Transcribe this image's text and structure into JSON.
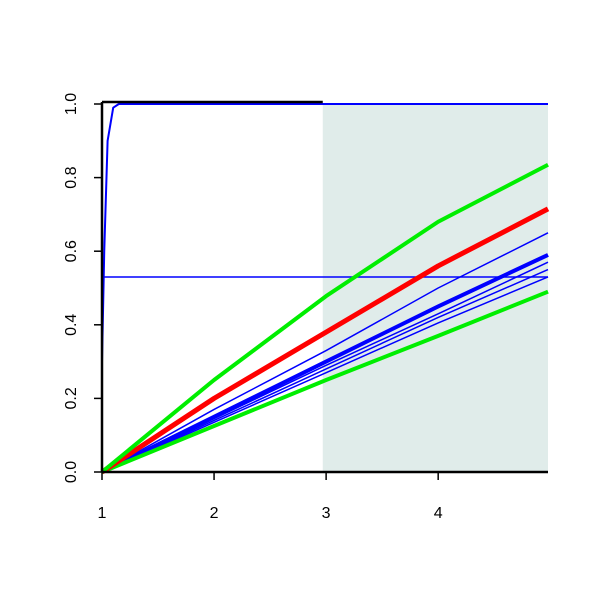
{
  "chart_data": {
    "type": "line",
    "xlim": [
      1,
      4.98
    ],
    "ylim": [
      0,
      1
    ],
    "xticks": [
      1,
      2,
      3,
      4
    ],
    "yticks": [
      {
        "value": 0,
        "label": "0.0"
      },
      0.2,
      0.4,
      0.6,
      0.8,
      {
        "value": 1,
        "label": "1.0"
      }
    ],
    "shaded_region": {
      "x": [
        2.97,
        4.98
      ],
      "color": "#e0ecea"
    },
    "series": [
      {
        "color": "#0000ff",
        "width": 1.5,
        "x": [
          1,
          4.98
        ],
        "values": [
          0.53,
          0.53
        ]
      },
      {
        "color": "#0000ff",
        "width": 1.5,
        "x": [
          1,
          2,
          3,
          4,
          4.98
        ],
        "values": [
          0,
          0.17,
          0.33,
          0.5,
          0.65
        ]
      },
      {
        "color": "#0000ff",
        "width": 1.5,
        "x": [
          1,
          2,
          3,
          4,
          4.98
        ],
        "values": [
          0,
          0.14,
          0.28,
          0.42,
          0.55
        ]
      },
      {
        "color": "#0000ff",
        "width": 1.5,
        "x": [
          1,
          2,
          3,
          4,
          4.98
        ],
        "values": [
          0,
          0.135,
          0.27,
          0.405,
          0.53
        ]
      },
      {
        "color": "#0000ff",
        "width": 1.5,
        "x": [
          1,
          2,
          3,
          4,
          4.98
        ],
        "values": [
          0,
          0.145,
          0.29,
          0.43,
          0.57
        ]
      },
      {
        "color": "#0000ff",
        "width": 4,
        "x": [
          1,
          2,
          3,
          4,
          4.98
        ],
        "values": [
          0,
          0.15,
          0.3,
          0.45,
          0.59
        ]
      },
      {
        "color": "#00ee00",
        "width": 4,
        "x": [
          1,
          2,
          3,
          4,
          4.98
        ],
        "values": [
          0,
          0.125,
          0.25,
          0.37,
          0.49
        ]
      },
      {
        "color": "#ff0000",
        "width": 5,
        "x": [
          1,
          2,
          3,
          4,
          4.98
        ],
        "values": [
          0,
          0.2,
          0.38,
          0.56,
          0.715
        ]
      },
      {
        "color": "#00ee00",
        "width": 4,
        "x": [
          1,
          2,
          3,
          4,
          4.98
        ],
        "values": [
          0,
          0.25,
          0.478,
          0.68,
          0.835
        ]
      },
      {
        "color": "#0000ff",
        "width": 2,
        "x": [
          1,
          1.02,
          1.05,
          1.1,
          1.15,
          2,
          3,
          4,
          4.98
        ],
        "values": [
          0.3,
          0.6,
          0.9,
          0.99,
          1,
          1,
          1,
          1,
          1
        ]
      }
    ]
  }
}
